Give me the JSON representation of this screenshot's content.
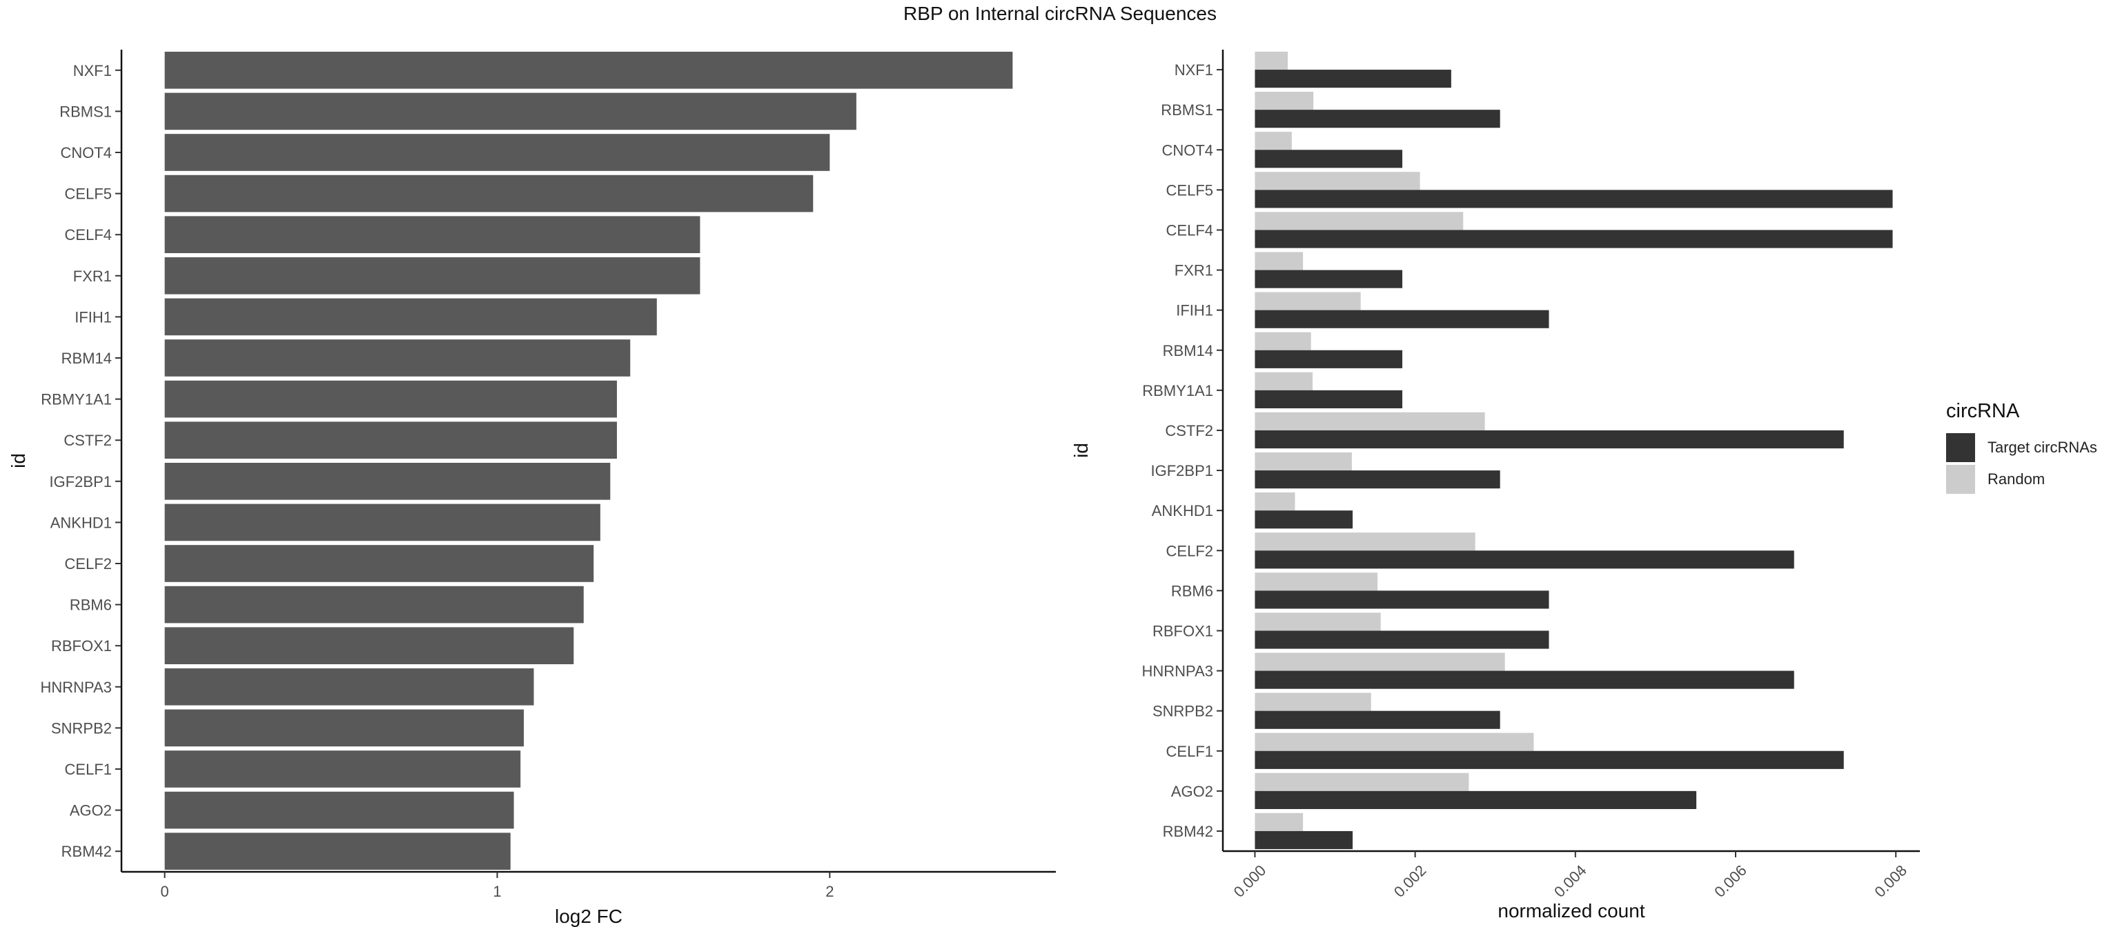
{
  "title": "RBP on Internal circRNA Sequences",
  "legend": {
    "title": "circRNA",
    "items": [
      {
        "label": "Target circRNAs",
        "color": "#333333"
      },
      {
        "label": "Random",
        "color": "#cccccc"
      }
    ]
  },
  "chart_data": [
    {
      "type": "bar",
      "orientation": "horizontal",
      "categories": [
        "NXF1",
        "RBMS1",
        "CNOT4",
        "CELF5",
        "CELF4",
        "FXR1",
        "IFIH1",
        "RBM14",
        "RBMY1A1",
        "CSTF2",
        "IGF2BP1",
        "ANKHD1",
        "CELF2",
        "RBM6",
        "RBFOX1",
        "HNRNPA3",
        "SNRPB2",
        "CELF1",
        "AGO2",
        "RBM42"
      ],
      "values": [
        2.55,
        2.08,
        2.0,
        1.95,
        1.61,
        1.61,
        1.48,
        1.4,
        1.36,
        1.36,
        1.34,
        1.31,
        1.29,
        1.26,
        1.23,
        1.11,
        1.08,
        1.07,
        1.05,
        1.04
      ],
      "xlabel": "log2 FC",
      "ylabel": "id",
      "xlim": [
        -0.13,
        2.68
      ],
      "xticks": [
        0,
        1,
        2
      ],
      "bar_color": "#595959",
      "grid": false
    },
    {
      "type": "bar",
      "orientation": "horizontal",
      "categories": [
        "NXF1",
        "RBMS1",
        "CNOT4",
        "CELF5",
        "CELF4",
        "FXR1",
        "IFIH1",
        "RBM14",
        "RBMY1A1",
        "CSTF2",
        "IGF2BP1",
        "ANKHD1",
        "CELF2",
        "RBM6",
        "RBFOX1",
        "HNRNPA3",
        "SNRPB2",
        "CELF1",
        "AGO2",
        "RBM42"
      ],
      "series": [
        {
          "name": "Target circRNAs",
          "color": "#333333",
          "values": [
            0.00245,
            0.00306,
            0.00184,
            0.00796,
            0.00796,
            0.00184,
            0.00367,
            0.00184,
            0.00184,
            0.00735,
            0.00306,
            0.00122,
            0.00673,
            0.00367,
            0.00367,
            0.00673,
            0.00306,
            0.00735,
            0.00551,
            0.00122
          ]
        },
        {
          "name": "Random",
          "color": "#cccccc",
          "values": [
            0.00041,
            0.00073,
            0.00046,
            0.00206,
            0.0026,
            0.0006,
            0.00132,
            0.0007,
            0.00072,
            0.00287,
            0.00121,
            0.0005,
            0.00275,
            0.00153,
            0.00157,
            0.00312,
            0.00145,
            0.00348,
            0.00267,
            0.0006
          ]
        }
      ],
      "xlabel": "normalized count",
      "ylabel": "id",
      "xlim": [
        -0.0004,
        0.0083
      ],
      "xticks": [
        0.0,
        0.002,
        0.004,
        0.006,
        0.008
      ],
      "xtick_labels": [
        "0.000",
        "0.002",
        "0.004",
        "0.006",
        "0.008"
      ],
      "legend_position": "right",
      "grid": false
    }
  ]
}
